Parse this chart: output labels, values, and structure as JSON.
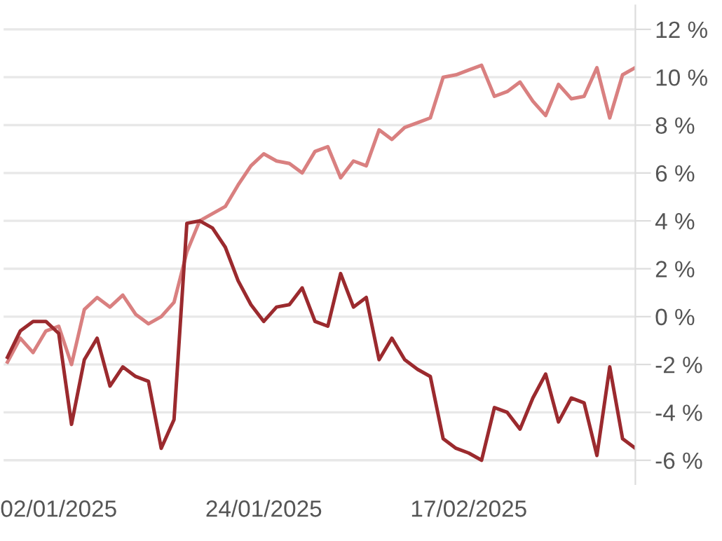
{
  "chart_data": {
    "type": "line",
    "categories": [
      null,
      null,
      null,
      null,
      "02/01/2025",
      null,
      null,
      null,
      null,
      null,
      null,
      null,
      null,
      null,
      null,
      null,
      null,
      null,
      null,
      null,
      "24/01/2025",
      null,
      null,
      null,
      null,
      null,
      null,
      null,
      null,
      null,
      null,
      null,
      null,
      null,
      null,
      null,
      "17/02/2025",
      null,
      null,
      null,
      null,
      null,
      null,
      null,
      null,
      null,
      null,
      null,
      null,
      null
    ],
    "series": [
      {
        "color": "#d98080",
        "values": [
          -1.9,
          -0.9,
          -1.5,
          -0.6,
          -0.4,
          -2.0,
          0.3,
          0.8,
          0.4,
          0.9,
          0.1,
          -0.3,
          0.0,
          0.6,
          2.7,
          4.0,
          4.3,
          4.6,
          5.5,
          6.3,
          6.8,
          6.5,
          6.4,
          6.0,
          6.9,
          7.1,
          5.8,
          6.5,
          6.3,
          7.8,
          7.4,
          7.9,
          8.1,
          8.3,
          10.0,
          10.1,
          10.3,
          10.5,
          9.2,
          9.4,
          9.8,
          9.0,
          8.4,
          9.7,
          9.1,
          9.2,
          10.4,
          8.3,
          10.1,
          10.4
        ]
      },
      {
        "color": "#9b2a2e",
        "values": [
          -1.7,
          -0.6,
          -0.2,
          -0.2,
          -0.7,
          -4.5,
          -1.8,
          -0.9,
          -2.9,
          -2.1,
          -2.5,
          -2.7,
          -5.5,
          -4.3,
          3.9,
          4.0,
          3.7,
          2.9,
          1.5,
          0.5,
          -0.2,
          0.4,
          0.5,
          1.2,
          -0.2,
          -0.4,
          1.8,
          0.4,
          0.8,
          -1.8,
          -0.9,
          -1.8,
          -2.2,
          -2.5,
          -5.1,
          -5.5,
          -5.7,
          -6.0,
          -3.8,
          -4.0,
          -4.7,
          -3.4,
          -2.4,
          -4.4,
          -3.4,
          -3.6,
          -5.8,
          -2.1,
          -5.1,
          -5.5
        ]
      }
    ],
    "ylim": [
      -7,
      13
    ],
    "yticks": [
      {
        "value": -6,
        "label": "-6 %"
      },
      {
        "value": -4,
        "label": "-4 %"
      },
      {
        "value": -2,
        "label": "-2 %"
      },
      {
        "value": 0,
        "label": "0 %"
      },
      {
        "value": 2,
        "label": "2 %"
      },
      {
        "value": 4,
        "label": "4 %"
      },
      {
        "value": 6,
        "label": "6 %"
      },
      {
        "value": 8,
        "label": "8 %"
      },
      {
        "value": 10,
        "label": "10 %"
      },
      {
        "value": 12,
        "label": "12 %"
      }
    ],
    "grid": "y"
  }
}
